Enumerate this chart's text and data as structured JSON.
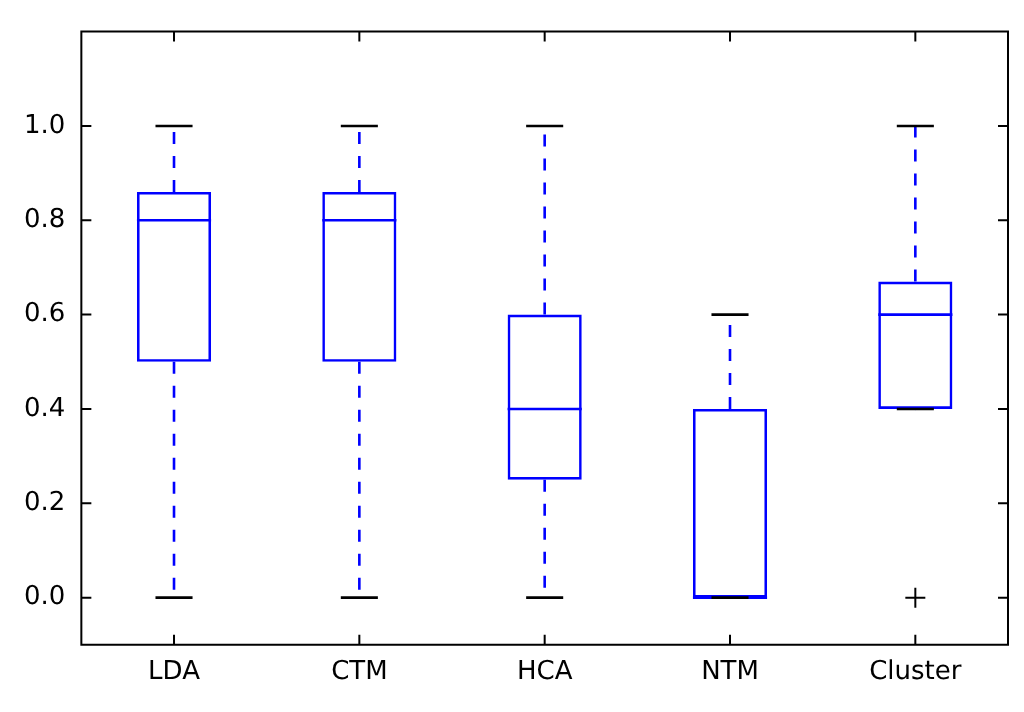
{
  "chart_data": {
    "type": "box",
    "categories": [
      "LDA",
      "CTM",
      "HCA",
      "NTM",
      "Cluster"
    ],
    "series": [
      {
        "color": "#0000ff",
        "boxes": [
          {
            "low": 0,
            "q1": 0.5,
            "median": 0.8,
            "q3": 0.86,
            "high": 1
          },
          {
            "low": 0,
            "q1": 0.5,
            "median": 0.8,
            "q3": 0.86,
            "high": 1
          },
          {
            "low": 0,
            "q1": 0.25,
            "median": 0.4,
            "q3": 0.6,
            "high": 1
          },
          {
            "low": 0,
            "q1": 0,
            "median": 0,
            "q3": 0.4,
            "high": 0.6
          },
          {
            "low": 0.4,
            "q1": 0.4,
            "median": 0.6,
            "q3": 0.67,
            "high": 1,
            "outliers": [
              0
            ]
          }
        ]
      }
    ],
    "ylim": [
      -0.1,
      1.2
    ],
    "yticks": [
      {
        "value": 0,
        "label": "0.0"
      },
      {
        "value": 0.2,
        "label": "0.2"
      },
      {
        "value": 0.4,
        "label": "0.4"
      },
      {
        "value": 0.6,
        "label": "0.6"
      },
      {
        "value": 0.8,
        "label": "0.8"
      },
      {
        "value": 1,
        "label": "1.0"
      }
    ],
    "grid": false,
    "legend": false,
    "marker": "cross"
  }
}
